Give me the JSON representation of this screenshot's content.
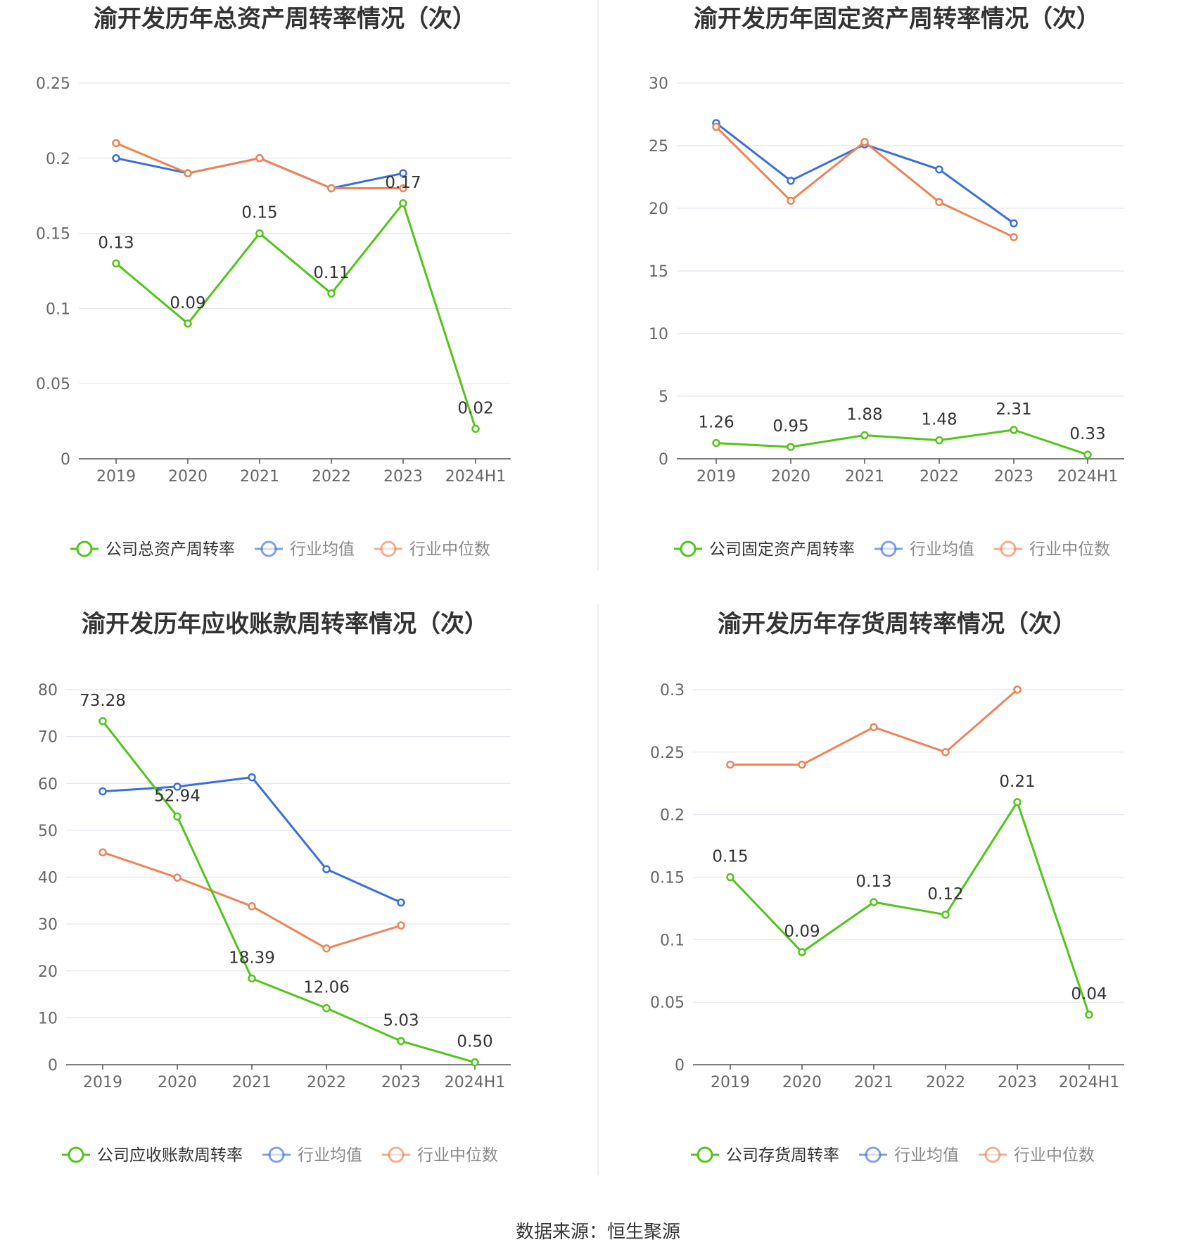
{
  "footer": {
    "source": "数据来源：恒生聚源"
  },
  "chart_data": [
    {
      "type": "line",
      "title": "渝开发历年总资产周转率情况（次）",
      "categories": [
        "2019",
        "2020",
        "2021",
        "2022",
        "2023",
        "2024H1"
      ],
      "ylim": [
        0,
        0.25
      ],
      "yticks": [
        "0",
        "0.05",
        "0.1",
        "0.15",
        "0.2",
        "0.25"
      ],
      "ytick_values": [
        0,
        0.05,
        0.1,
        0.15,
        0.2,
        0.25
      ],
      "grid": true,
      "legend_position": "bottom",
      "series": [
        {
          "name": "公司总资产周转率",
          "color": "#52c41a",
          "values": [
            0.13,
            0.09,
            0.15,
            0.11,
            0.17,
            0.02
          ],
          "labels": [
            "0.13",
            "0.09",
            "0.15",
            "0.11",
            "0.17",
            "0.02"
          ]
        },
        {
          "name": "行业均值",
          "color": "#3b6fd8",
          "values": [
            0.2,
            0.19,
            0.2,
            0.18,
            0.19,
            null
          ]
        },
        {
          "name": "行业中位数",
          "color": "#ee8356",
          "values": [
            0.21,
            0.19,
            0.2,
            0.18,
            0.18,
            null
          ]
        }
      ]
    },
    {
      "type": "line",
      "title": "渝开发历年固定资产周转率情况（次）",
      "categories": [
        "2019",
        "2020",
        "2021",
        "2022",
        "2023",
        "2024H1"
      ],
      "ylim": [
        0,
        30
      ],
      "yticks": [
        "0",
        "5",
        "10",
        "15",
        "20",
        "25",
        "30"
      ],
      "ytick_values": [
        0,
        5,
        10,
        15,
        20,
        25,
        30
      ],
      "grid": true,
      "legend_position": "bottom",
      "series": [
        {
          "name": "公司固定资产周转率",
          "color": "#52c41a",
          "values": [
            1.26,
            0.95,
            1.88,
            1.48,
            2.31,
            0.33
          ],
          "labels": [
            "1.26",
            "0.95",
            "1.88",
            "1.48",
            "2.31",
            "0.33"
          ]
        },
        {
          "name": "行业均值",
          "color": "#3b6fd8",
          "values": [
            26.8,
            22.2,
            25.1,
            23.1,
            18.8,
            null
          ]
        },
        {
          "name": "行业中位数",
          "color": "#ee8356",
          "values": [
            26.5,
            20.6,
            25.3,
            20.5,
            17.7,
            null
          ]
        }
      ]
    },
    {
      "type": "line",
      "title": "渝开发历年应收账款周转率情况（次）",
      "categories": [
        "2019",
        "2020",
        "2021",
        "2022",
        "2023",
        "2024H1"
      ],
      "ylim": [
        0,
        80
      ],
      "yticks": [
        "0",
        "10",
        "20",
        "30",
        "40",
        "50",
        "60",
        "70",
        "80"
      ],
      "ytick_values": [
        0,
        10,
        20,
        30,
        40,
        50,
        60,
        70,
        80
      ],
      "grid": true,
      "legend_position": "bottom",
      "series": [
        {
          "name": "公司应收账款周转率",
          "color": "#52c41a",
          "values": [
            73.28,
            52.94,
            18.39,
            12.06,
            5.03,
            0.5
          ],
          "labels": [
            "73.28",
            "52.94",
            "18.39",
            "12.06",
            "5.03",
            "0.50"
          ]
        },
        {
          "name": "行业均值",
          "color": "#3b6fd8",
          "values": [
            58.3,
            59.3,
            61.3,
            41.7,
            34.6,
            null
          ]
        },
        {
          "name": "行业中位数",
          "color": "#ee8356",
          "values": [
            45.3,
            39.9,
            33.8,
            24.8,
            29.7,
            null
          ]
        }
      ]
    },
    {
      "type": "line",
      "title": "渝开发历年存货周转率情况（次）",
      "categories": [
        "2019",
        "2020",
        "2021",
        "2022",
        "2023",
        "2024H1"
      ],
      "ylim": [
        0,
        0.3
      ],
      "yticks": [
        "0",
        "0.05",
        "0.1",
        "0.15",
        "0.2",
        "0.25",
        "0.3"
      ],
      "ytick_values": [
        0,
        0.05,
        0.1,
        0.15,
        0.2,
        0.25,
        0.3
      ],
      "grid": true,
      "legend_position": "bottom",
      "series": [
        {
          "name": "公司存货周转率",
          "color": "#52c41a",
          "values": [
            0.15,
            0.09,
            0.13,
            0.12,
            0.21,
            0.04
          ],
          "labels": [
            "0.15",
            "0.09",
            "0.13",
            "0.12",
            "0.21",
            "0.04"
          ]
        },
        {
          "name": "行业均值",
          "color": "#3b6fd8",
          "values": [
            null,
            null,
            null,
            null,
            null,
            null
          ]
        },
        {
          "name": "行业中位数",
          "color": "#ee8356",
          "values": [
            0.24,
            0.24,
            0.27,
            0.25,
            0.3,
            null
          ]
        }
      ]
    }
  ]
}
